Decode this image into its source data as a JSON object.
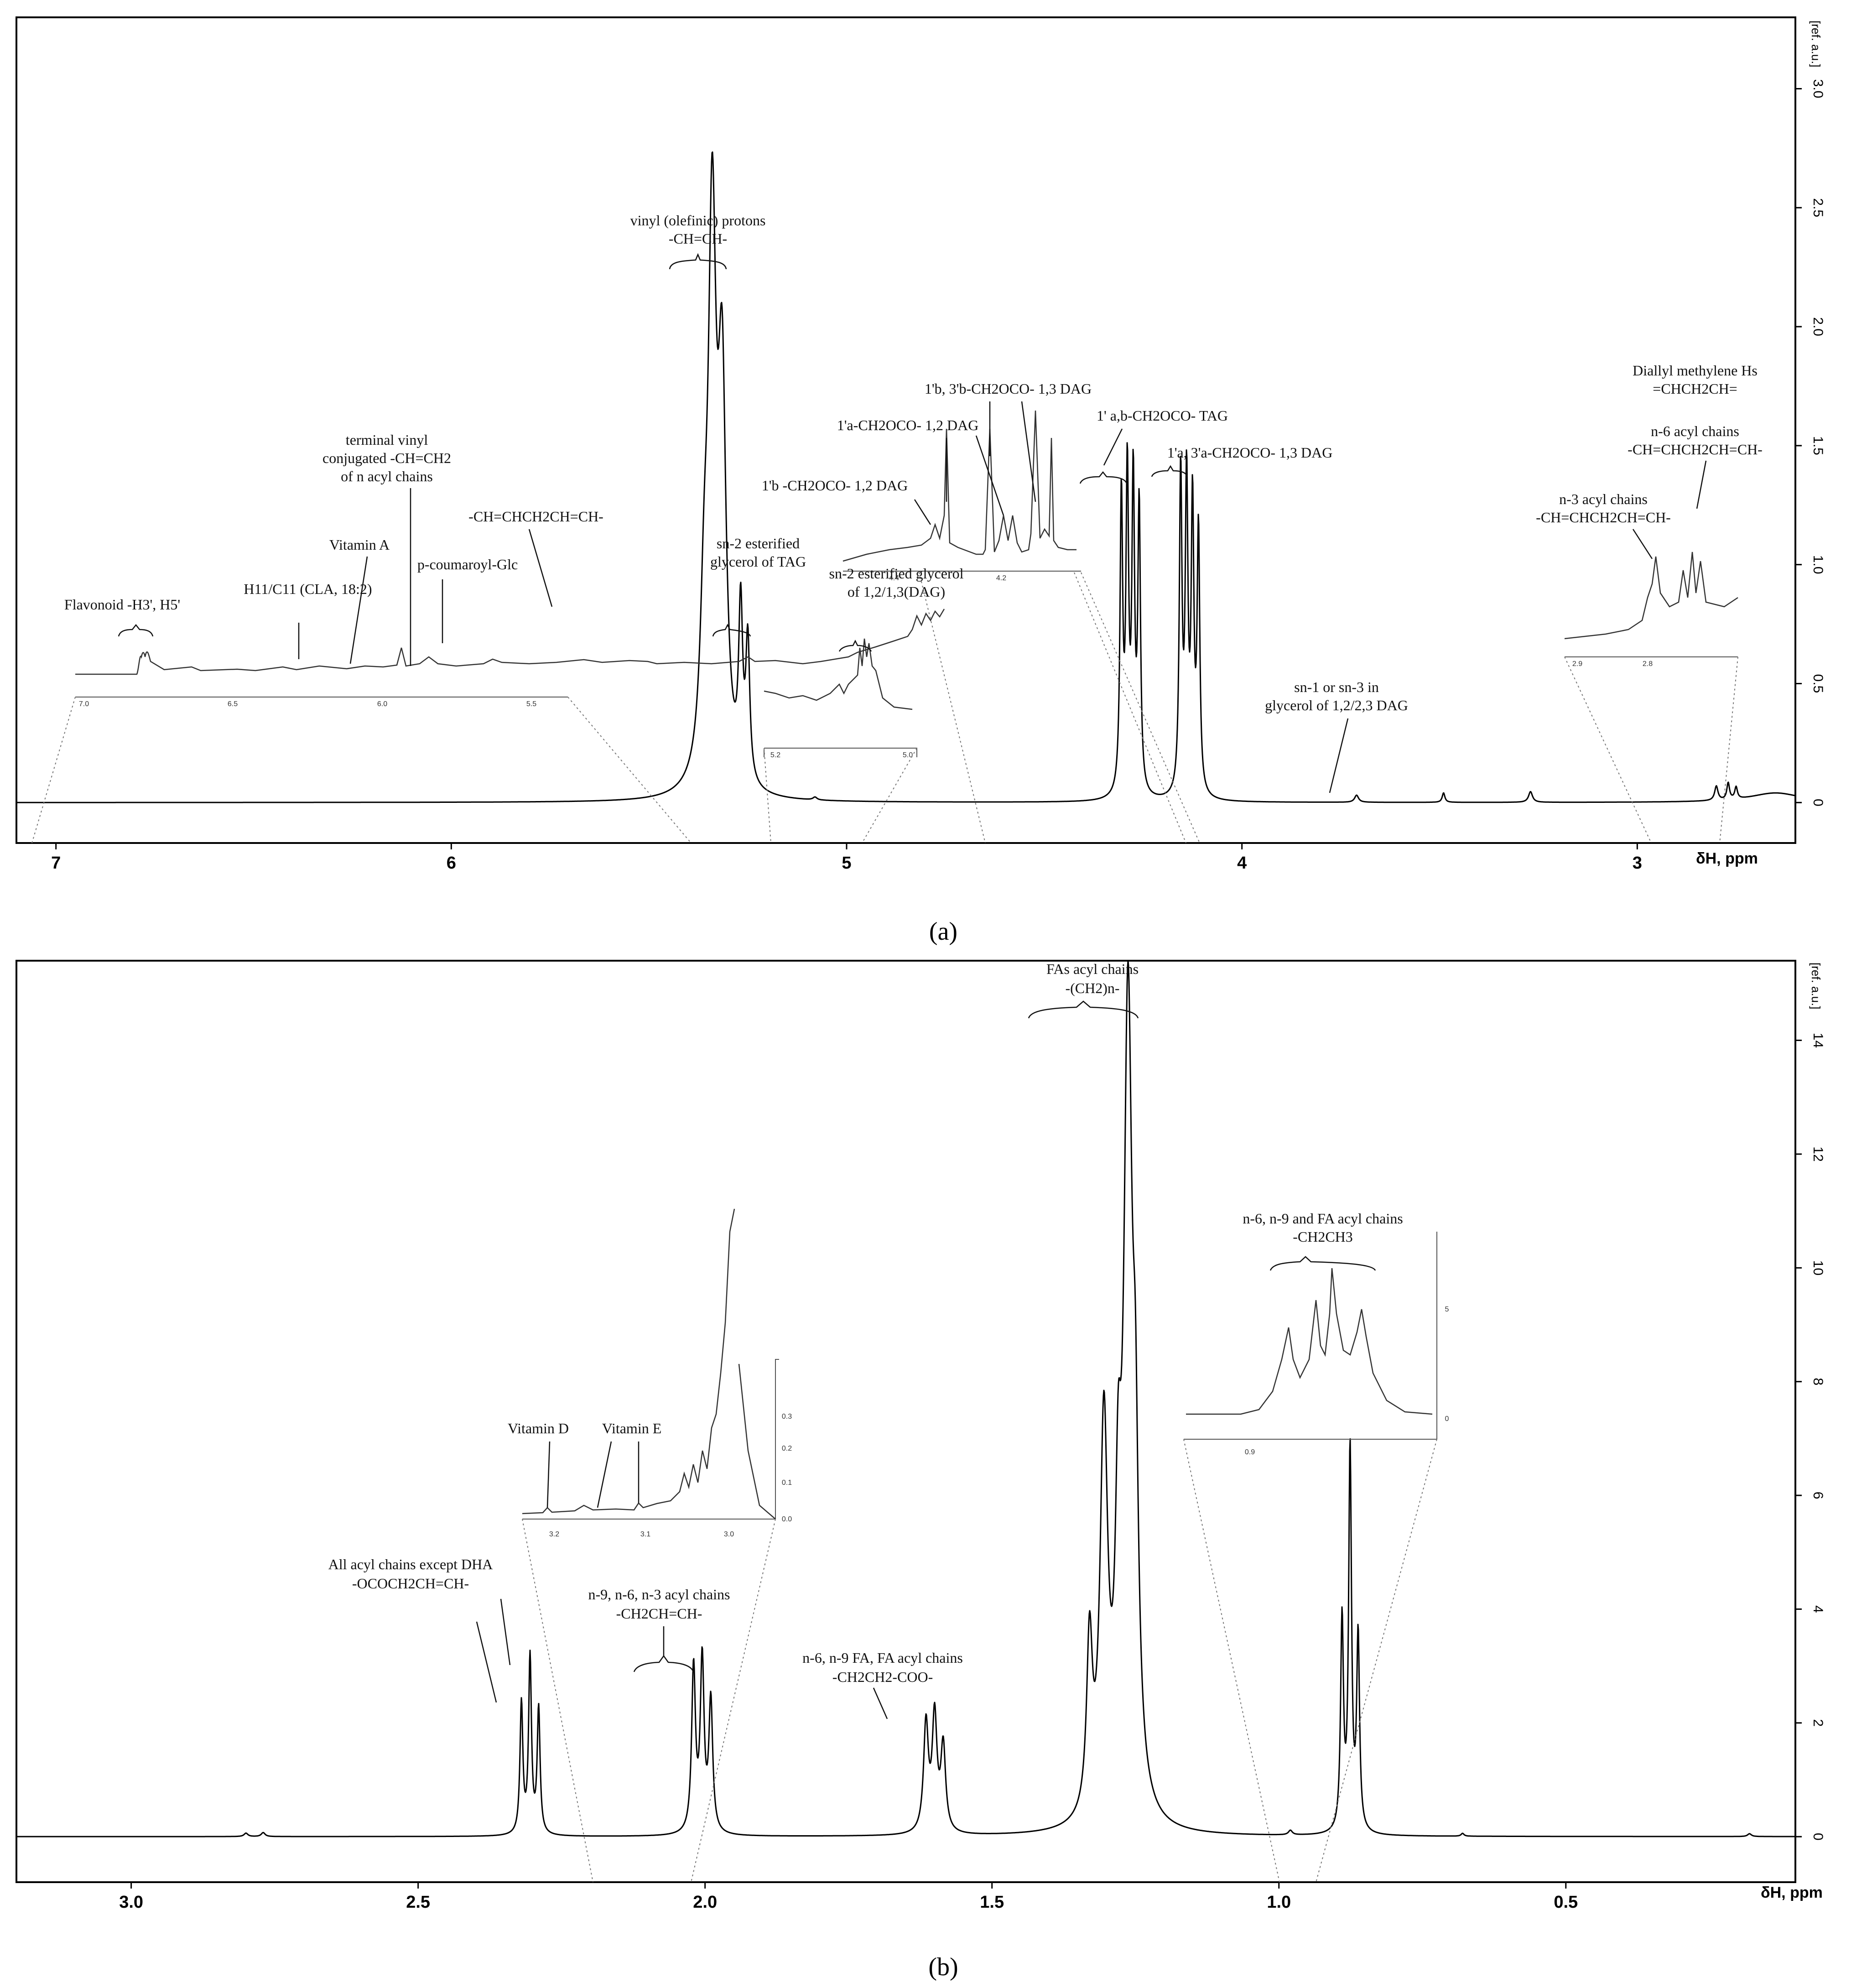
{
  "chart_data": [
    {
      "type": "line",
      "panel": "(a)",
      "panel_letter": "a",
      "xlabel": "δH, ppm",
      "ylabel": "[ref. a.u.]",
      "xlim": [
        7.1,
        2.6
      ],
      "ylim": [
        -0.17,
        3.3
      ],
      "x_ticks": [
        7,
        6,
        5,
        4,
        3
      ],
      "y_ticks": [
        0,
        0.5,
        1.0,
        1.5,
        2.0,
        2.5,
        3.0
      ],
      "y_tick_labels": [
        "0",
        "0.5",
        "1.0",
        "1.5",
        "2.0",
        "2.5",
        "3.0"
      ],
      "peaks": [
        {
          "ppm": 5.34,
          "height": 2.27,
          "width": 0.012
        },
        {
          "ppm": 5.315,
          "height": 1.6,
          "width": 0.012
        },
        {
          "ppm": 5.36,
          "height": 0.6,
          "width": 0.012
        },
        {
          "ppm": 5.268,
          "height": 0.7,
          "width": 0.006
        },
        {
          "ppm": 5.25,
          "height": 0.58,
          "width": 0.006
        },
        {
          "ppm": 5.08,
          "height": 0.012,
          "width": 0.006
        },
        {
          "ppm": 4.305,
          "height": 1.25,
          "width": 0.004
        },
        {
          "ppm": 4.29,
          "height": 1.33,
          "width": 0.004
        },
        {
          "ppm": 4.275,
          "height": 1.3,
          "width": 0.004
        },
        {
          "ppm": 4.26,
          "height": 1.2,
          "width": 0.004
        },
        {
          "ppm": 4.155,
          "height": 1.35,
          "width": 0.004
        },
        {
          "ppm": 4.14,
          "height": 1.3,
          "width": 0.004
        },
        {
          "ppm": 4.125,
          "height": 1.2,
          "width": 0.004
        },
        {
          "ppm": 4.11,
          "height": 1.1,
          "width": 0.004
        },
        {
          "ppm": 3.71,
          "height": 0.03,
          "width": 0.006
        },
        {
          "ppm": 3.49,
          "height": 0.04,
          "width": 0.004
        },
        {
          "ppm": 3.27,
          "height": 0.045,
          "width": 0.006
        },
        {
          "ppm": 2.8,
          "height": 0.06,
          "width": 0.005
        },
        {
          "ppm": 2.77,
          "height": 0.07,
          "width": 0.004
        },
        {
          "ppm": 2.75,
          "height": 0.05,
          "width": 0.004
        },
        {
          "ppm": 2.65,
          "height": 0.04,
          "width": 0.08
        }
      ],
      "annotations": {
        "vinyl_title": "vinyl (olefinic)  protons",
        "vinyl_formula": "-CH=CH-",
        "sn2_tag_1": "sn-2 esterified",
        "sn2_tag_2": "glycerol of TAG",
        "sn2_dag_1": "sn-2 esterified glycerol",
        "sn2_dag_2": "of 1,2/1,3(DAG)",
        "dag_1b": "1'b -CH2OCO- 1,2 DAG",
        "dag_1a": "1'a-CH2OCO- 1,2 DAG",
        "dag_13b": "1'b, 3'b-CH2OCO- 1,3 DAG",
        "tag_ab": "1' a,b-CH2OCO-   TAG",
        "dag_13a": "1'a, 3'a-CH2OCO- 1,3 DAG",
        "sn1_1": "sn-1 or sn-3 in",
        "sn1_2": "glycerol of 1,2/2,3 DAG",
        "diallyl_1": "Diallyl methylene Hs",
        "diallyl_2": "=CHCH2CH=",
        "n6_1": "n-6 acyl chains",
        "n6_2": "-CH=CHCH2CH=CH-",
        "n3_1": "n-3 acyl chains",
        "n3_2": "-CH=CHCH2CH=CH-",
        "flavonoid": "Flavonoid -H3', H5'",
        "h11": "H11/C11 (CLA, 18:2)",
        "vitA": "Vitamin A",
        "terminal_1": "terminal vinyl",
        "terminal_2": "conjugated -CH=CH2",
        "terminal_3": "of n acyl chains",
        "coumaroyl": "p-coumaroyl-Glc",
        "chchch": "-CH=CHCH2CH=CH-"
      },
      "inset_ticks": {
        "left": [
          "7.0",
          "6.5",
          "6.0",
          "5.5"
        ],
        "mid": [
          "5.2",
          "5.0"
        ],
        "dag": [
          "4.4",
          "4.2"
        ],
        "right": [
          "2.9",
          "2.8"
        ]
      }
    },
    {
      "type": "line",
      "panel": "(b)",
      "panel_letter": "b",
      "xlabel": "δH, ppm",
      "ylabel": "[ref. a.u.]",
      "xlim": [
        3.2,
        0.1
      ],
      "ylim": [
        -0.8,
        15.4
      ],
      "x_ticks": [
        3.0,
        2.5,
        2.0,
        1.5,
        1.0,
        0.5
      ],
      "x_tick_labels": [
        "3.0",
        "2.5",
        "2.0",
        "1.5",
        "1.0",
        "0.5"
      ],
      "y_ticks": [
        0,
        2,
        4,
        6,
        8,
        10,
        12,
        14
      ],
      "y_tick_labels": [
        "0",
        "2",
        "4",
        "6",
        "8",
        "10",
        "12",
        "14"
      ],
      "peaks": [
        {
          "ppm": 2.8,
          "height": 0.06,
          "width": 0.004
        },
        {
          "ppm": 2.77,
          "height": 0.07,
          "width": 0.004
        },
        {
          "ppm": 2.32,
          "height": 2.3,
          "width": 0.003
        },
        {
          "ppm": 2.305,
          "height": 3.1,
          "width": 0.003
        },
        {
          "ppm": 2.29,
          "height": 2.2,
          "width": 0.003
        },
        {
          "ppm": 2.02,
          "height": 2.9,
          "width": 0.004
        },
        {
          "ppm": 2.005,
          "height": 3.0,
          "width": 0.004
        },
        {
          "ppm": 1.99,
          "height": 2.3,
          "width": 0.004
        },
        {
          "ppm": 1.615,
          "height": 1.9,
          "width": 0.005
        },
        {
          "ppm": 1.6,
          "height": 2.0,
          "width": 0.005
        },
        {
          "ppm": 1.585,
          "height": 1.5,
          "width": 0.005
        },
        {
          "ppm": 1.33,
          "height": 3.0,
          "width": 0.006
        },
        {
          "ppm": 1.305,
          "height": 6.8,
          "width": 0.008
        },
        {
          "ppm": 1.28,
          "height": 4.0,
          "width": 0.006
        },
        {
          "ppm": 1.263,
          "height": 13.9,
          "width": 0.009
        },
        {
          "ppm": 1.25,
          "height": 4.5,
          "width": 0.006
        },
        {
          "ppm": 0.98,
          "height": 0.08,
          "width": 0.004
        },
        {
          "ppm": 0.89,
          "height": 3.7,
          "width": 0.003
        },
        {
          "ppm": 0.876,
          "height": 6.7,
          "width": 0.003
        },
        {
          "ppm": 0.862,
          "height": 3.4,
          "width": 0.003
        },
        {
          "ppm": 0.68,
          "height": 0.05,
          "width": 0.003
        },
        {
          "ppm": 0.18,
          "height": 0.05,
          "width": 0.004
        }
      ],
      "annotations": {
        "fas_1": "FAs acyl chains",
        "fas_2": "-(CH2)n-",
        "ch3_1": "n-6, n-9 and FA acyl chains",
        "ch3_2": "-CH2CH3",
        "vitD": "Vitamin D",
        "vitE": "Vitamin E",
        "allacyl_1": "All acyl chains except DHA",
        "allacyl_2": "-OCOCH2CH=CH-",
        "n963_1": "n-9, n-6, n-3 acyl chains",
        "n963_2": "-CH2CH=CH-",
        "coo_1": "n-6, n-9 FA, FA acyl chains",
        "coo_2": "-CH2CH2-COO-"
      },
      "inset_ticks": {
        "vit_x": [
          "3.2",
          "3.1",
          "3.0"
        ],
        "vit_y": [
          "0.0",
          "0.1",
          "0.2",
          "0.3"
        ],
        "ch3_x": [
          "0.9"
        ],
        "ch3_y": [
          "0",
          "5"
        ]
      }
    }
  ]
}
